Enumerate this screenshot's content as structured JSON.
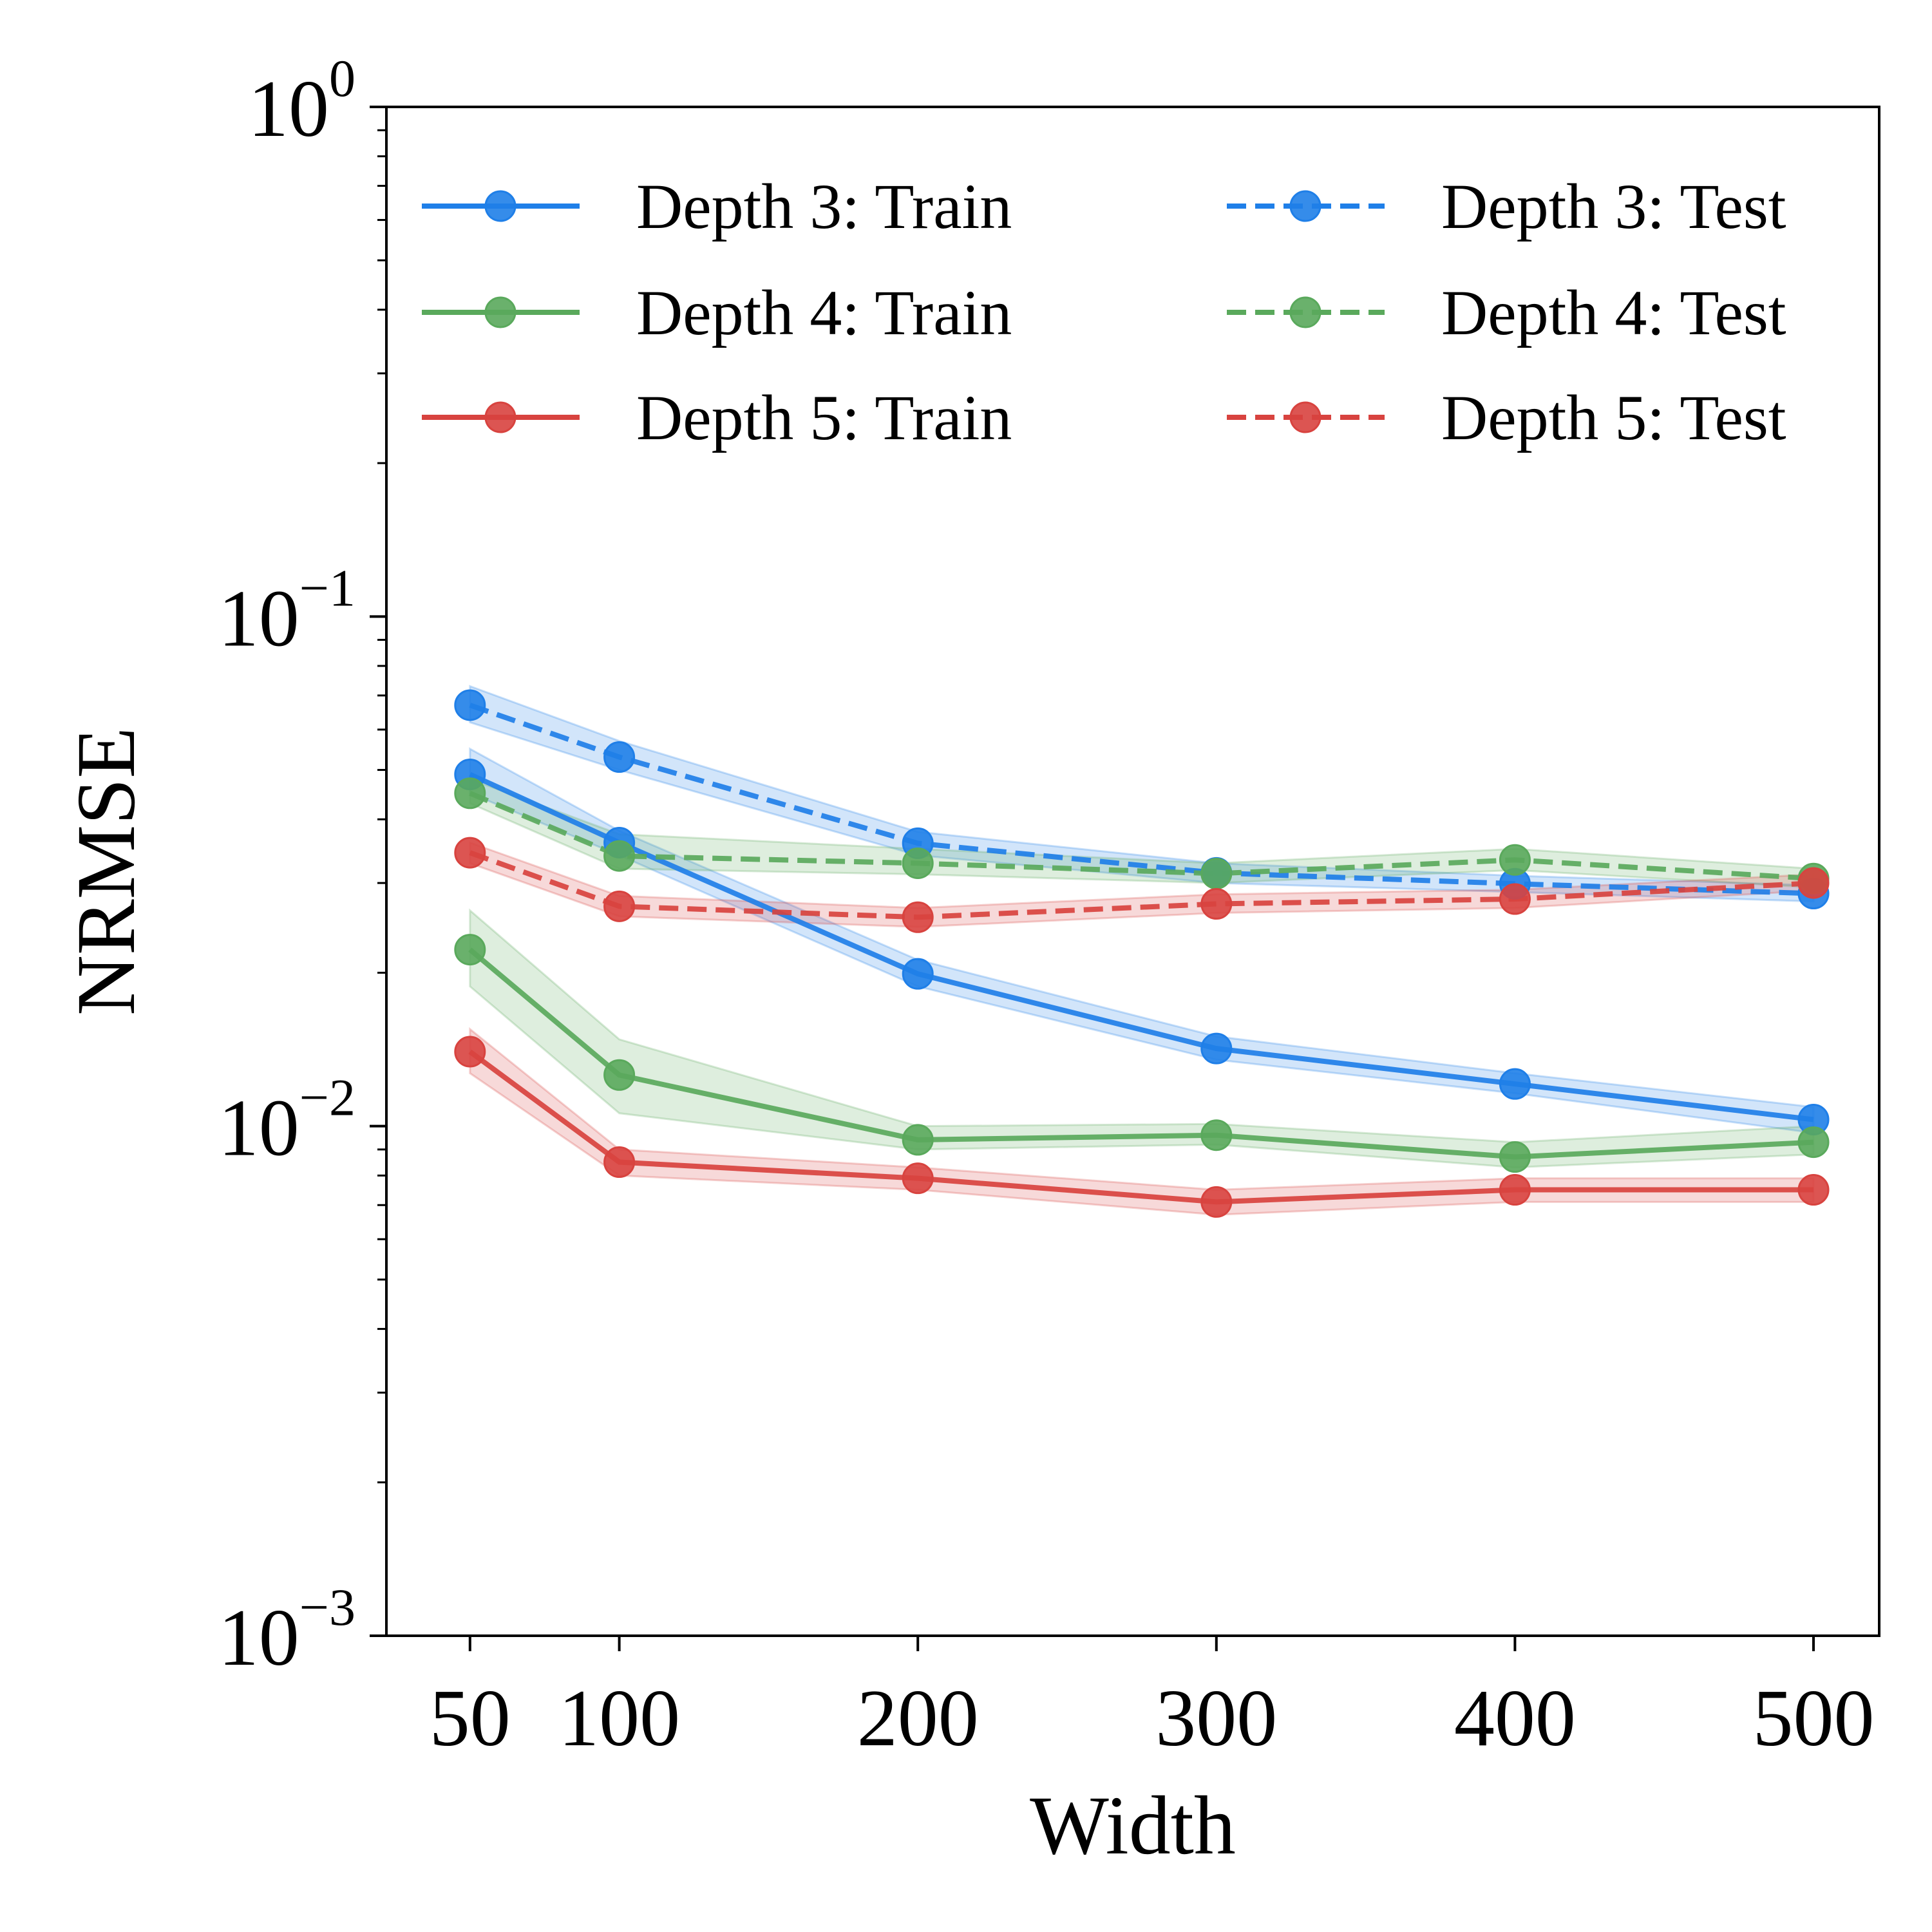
{
  "chart_data": {
    "type": "line",
    "title": "",
    "xlabel": "Width",
    "ylabel": "NRMSE",
    "yscale": "log",
    "ylim": [
      0.001,
      1
    ],
    "xlim": [
      22,
      522
    ],
    "x_ticks": [
      50,
      100,
      200,
      300,
      400,
      500
    ],
    "x_tick_labels": [
      "50",
      "100",
      "200",
      "300",
      "400",
      "500"
    ],
    "y_ticks": [
      0.001,
      0.01,
      0.1,
      1
    ],
    "y_tick_labels": [
      {
        "base": "10",
        "exp": "−3"
      },
      {
        "base": "10",
        "exp": "−2"
      },
      {
        "base": "10",
        "exp": "−1"
      },
      {
        "base": "10",
        "exp": "0"
      }
    ],
    "grid": false,
    "legend_position": "top",
    "x": [
      50,
      100,
      200,
      300,
      400,
      500
    ],
    "series": [
      {
        "name": "Depth 3: Train",
        "color": "#1f7fe8",
        "dash": "solid",
        "values": [
          0.049,
          0.036,
          0.0199,
          0.0142,
          0.0121,
          0.0103
        ],
        "lower": [
          0.045,
          0.034,
          0.0188,
          0.0135,
          0.0116,
          0.0097
        ],
        "upper": [
          0.055,
          0.038,
          0.0212,
          0.015,
          0.0127,
          0.0109
        ]
      },
      {
        "name": "Depth 4: Train",
        "color": "#5aa95c",
        "dash": "solid",
        "values": [
          0.0222,
          0.0126,
          0.0094,
          0.0096,
          0.0087,
          0.0093
        ],
        "lower": [
          0.0188,
          0.0106,
          0.009,
          0.0092,
          0.0083,
          0.0088
        ],
        "upper": [
          0.0265,
          0.0148,
          0.01,
          0.0101,
          0.0093,
          0.01
        ]
      },
      {
        "name": "Depth 5: Train",
        "color": "#d8433f",
        "dash": "solid",
        "values": [
          0.014,
          0.0085,
          0.0079,
          0.0071,
          0.0075,
          0.0075
        ],
        "lower": [
          0.0127,
          0.008,
          0.0075,
          0.0067,
          0.0071,
          0.0071
        ],
        "upper": [
          0.0155,
          0.009,
          0.0083,
          0.0075,
          0.0079,
          0.0079
        ]
      },
      {
        "name": "Depth 3: Test",
        "color": "#1f7fe8",
        "dash": "dashed",
        "values": [
          0.067,
          0.053,
          0.0359,
          0.0314,
          0.0299,
          0.0286
        ],
        "lower": [
          0.062,
          0.05,
          0.034,
          0.03,
          0.0288,
          0.0276
        ],
        "upper": [
          0.073,
          0.057,
          0.0378,
          0.0328,
          0.031,
          0.0297
        ]
      },
      {
        "name": "Depth 4: Test",
        "color": "#5aa95c",
        "dash": "dashed",
        "values": [
          0.045,
          0.0339,
          0.0328,
          0.0313,
          0.0333,
          0.0306
        ],
        "lower": [
          0.043,
          0.032,
          0.0312,
          0.03,
          0.0318,
          0.0294
        ],
        "upper": [
          0.048,
          0.0374,
          0.035,
          0.0328,
          0.035,
          0.032
        ]
      },
      {
        "name": "Depth 5: Test",
        "color": "#d8433f",
        "dash": "dashed",
        "values": [
          0.0344,
          0.027,
          0.0257,
          0.0273,
          0.0279,
          0.03
        ],
        "lower": [
          0.0328,
          0.0258,
          0.0246,
          0.0262,
          0.0268,
          0.029
        ],
        "upper": [
          0.036,
          0.0283,
          0.0268,
          0.0285,
          0.0291,
          0.0312
        ]
      }
    ]
  }
}
